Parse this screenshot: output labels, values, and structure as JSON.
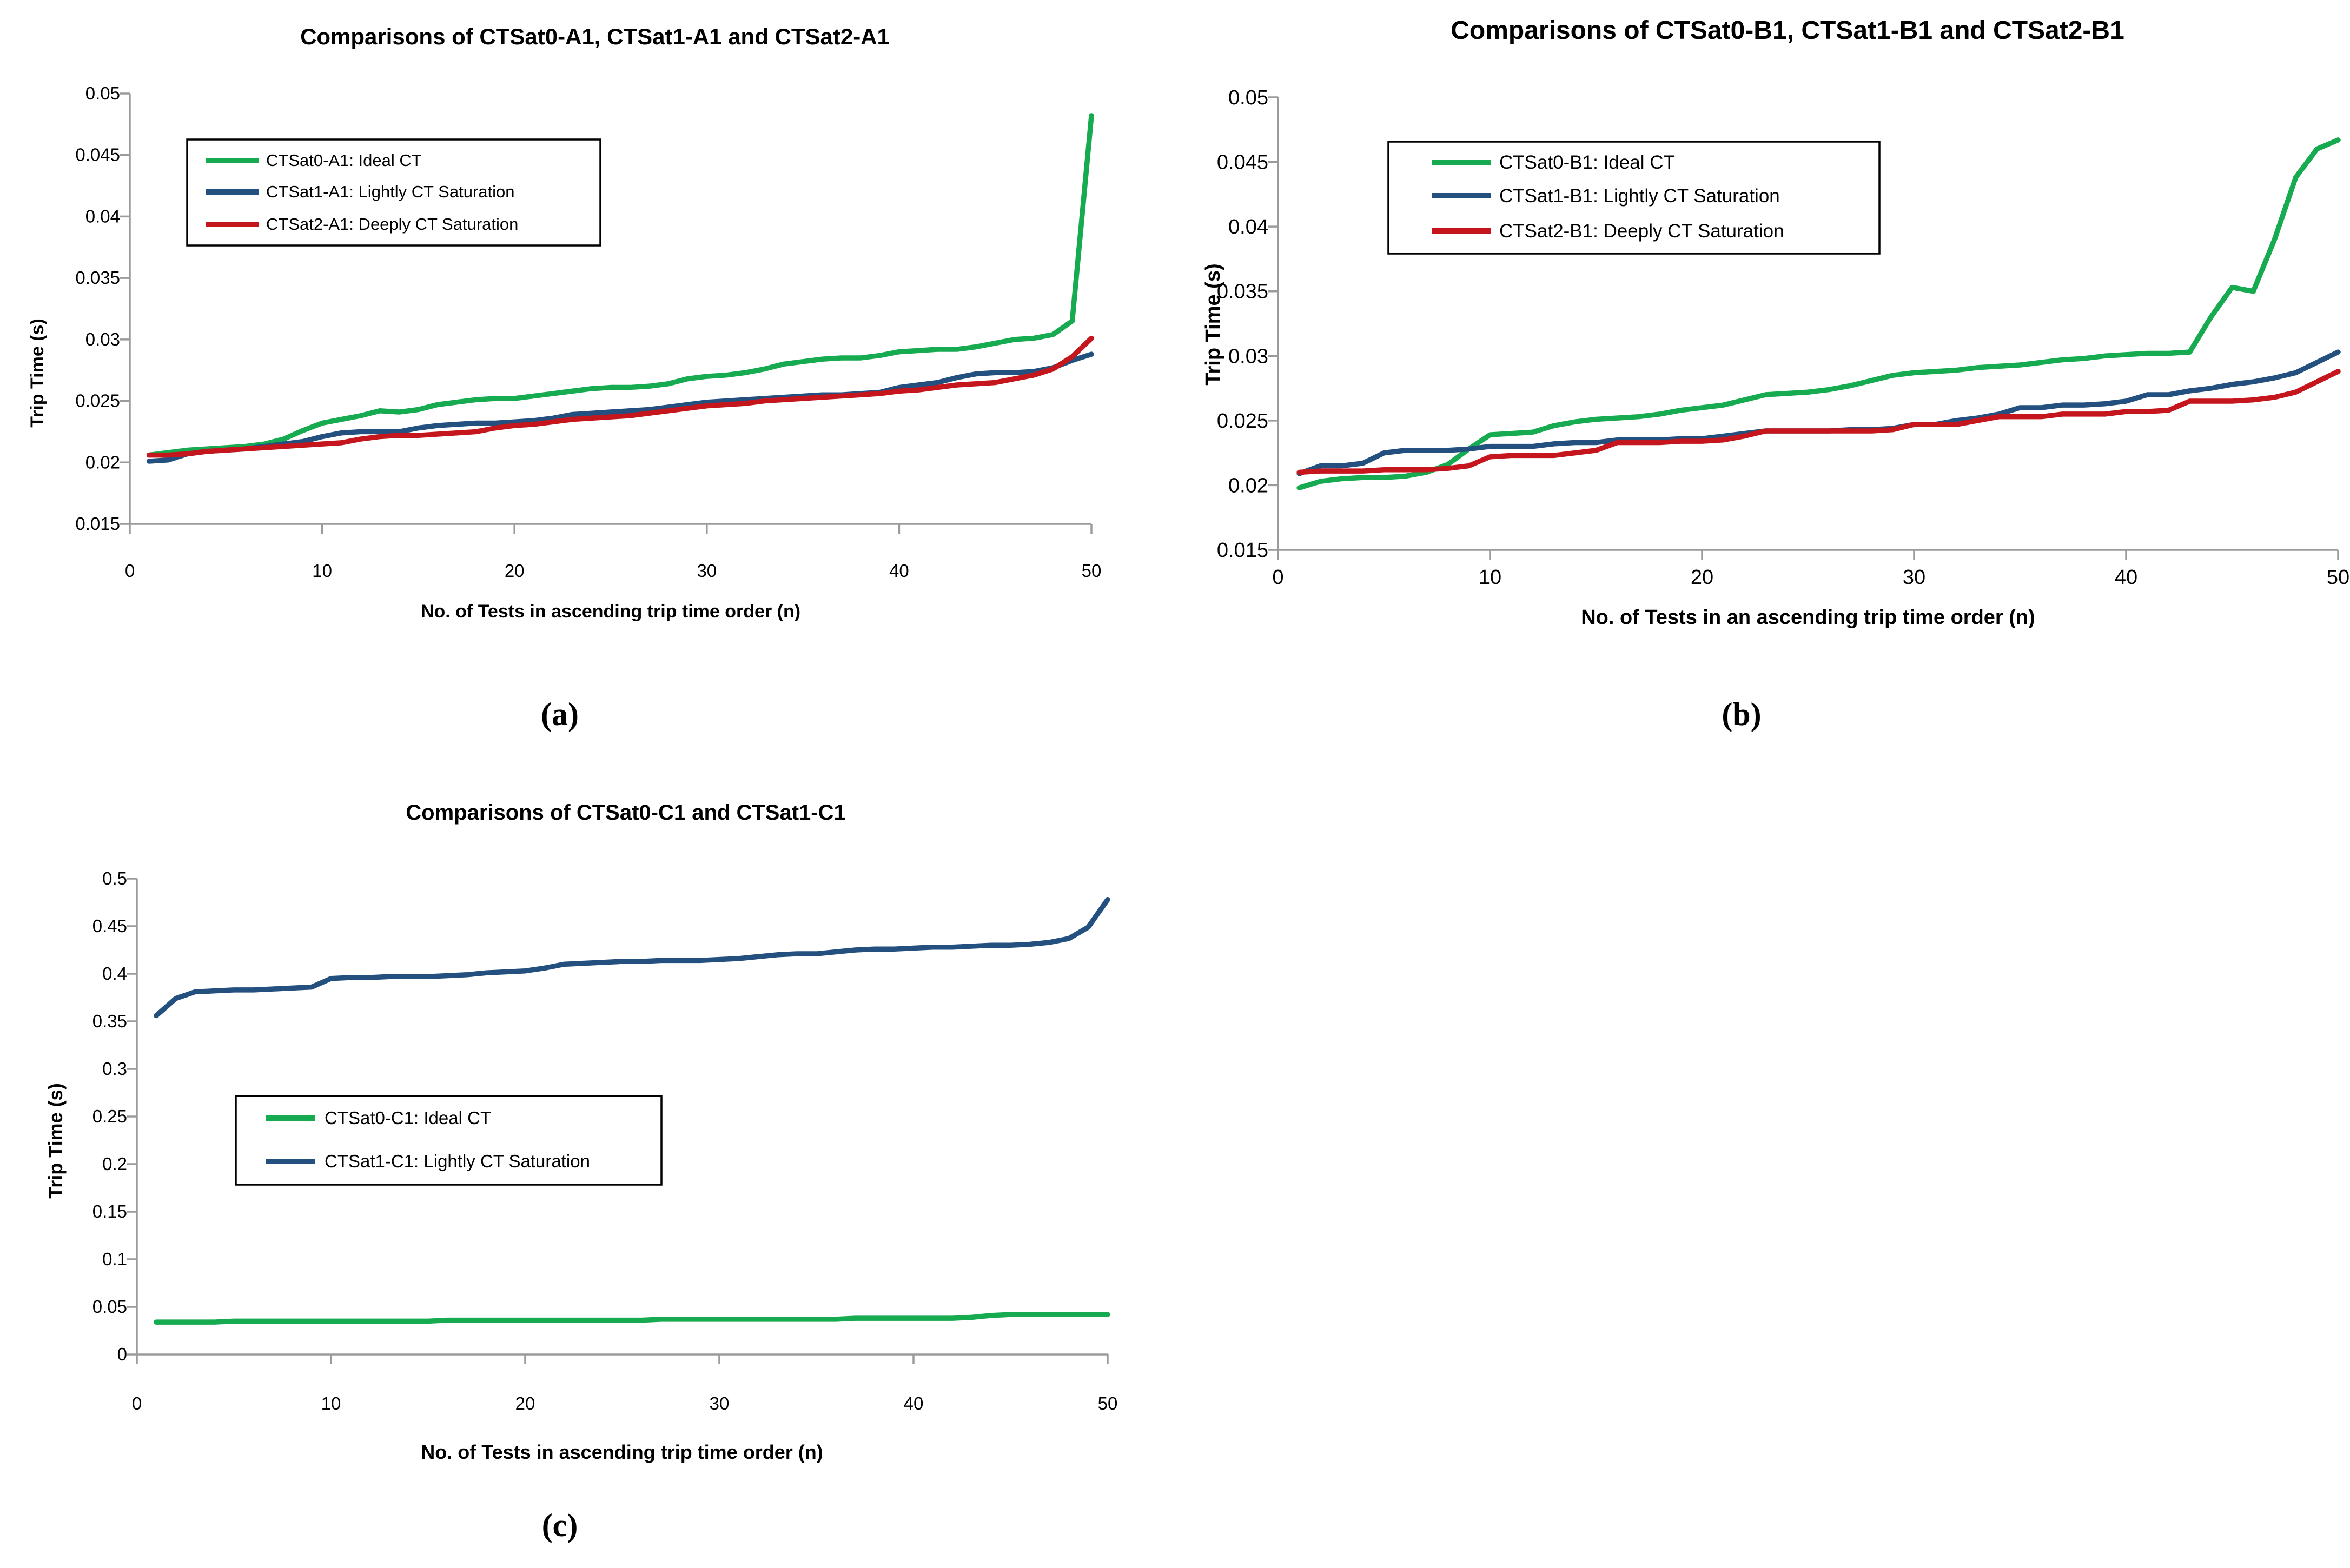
{
  "figure": {
    "background": "#ffffff",
    "axis_color": "#9B9B9B",
    "series_colors": {
      "ideal_green": "#17AB51",
      "light_blue": "#24507F",
      "deep_red": "#C5161D"
    }
  },
  "chart_data": [
    {
      "id": "a",
      "type": "line",
      "title": "Comparisons of CTSat0-A1, CTSat1-A1 and CTSat2-A1",
      "xlabel": "No. of Tests in ascending trip time order (n)",
      "ylabel": "Trip Time (s)",
      "caption": "(a)",
      "xlim": [
        0,
        50
      ],
      "ylim": [
        0.015,
        0.05
      ],
      "xticks": [
        0,
        10,
        20,
        30,
        40,
        50
      ],
      "yticks": [
        "0.015",
        "0.02",
        "0.025",
        "0.03",
        "0.035",
        "0.04",
        "0.045",
        "0.05"
      ],
      "grid": false,
      "legend_position": "upper-left",
      "x": [
        1,
        2,
        3,
        4,
        5,
        6,
        7,
        8,
        9,
        10,
        11,
        12,
        13,
        14,
        15,
        16,
        17,
        18,
        19,
        20,
        21,
        22,
        23,
        24,
        25,
        26,
        27,
        28,
        29,
        30,
        31,
        32,
        33,
        34,
        35,
        36,
        37,
        38,
        39,
        40,
        41,
        42,
        43,
        44,
        45,
        46,
        47,
        48,
        49,
        50
      ],
      "series": [
        {
          "name": "CTSat0-A1: Ideal CT",
          "color": "#17AB51",
          "values": [
            0.0206,
            0.0208,
            0.021,
            0.0211,
            0.0212,
            0.0213,
            0.0215,
            0.0219,
            0.0226,
            0.0232,
            0.0235,
            0.0238,
            0.0242,
            0.0241,
            0.0243,
            0.0247,
            0.0249,
            0.0251,
            0.0252,
            0.0252,
            0.0254,
            0.0256,
            0.0258,
            0.026,
            0.0261,
            0.0261,
            0.0262,
            0.0264,
            0.0268,
            0.027,
            0.0271,
            0.0273,
            0.0276,
            0.028,
            0.0282,
            0.0284,
            0.0285,
            0.0285,
            0.0287,
            0.029,
            0.0291,
            0.0292,
            0.0292,
            0.0294,
            0.0297,
            0.03,
            0.0301,
            0.0304,
            0.0315,
            0.0482
          ]
        },
        {
          "name": "CTSat1-A1: Lightly CT Saturation",
          "color": "#24507F",
          "values": [
            0.0201,
            0.0202,
            0.0207,
            0.0209,
            0.021,
            0.0211,
            0.0213,
            0.0215,
            0.0217,
            0.0221,
            0.0224,
            0.0225,
            0.0225,
            0.0225,
            0.0228,
            0.023,
            0.0231,
            0.0232,
            0.0232,
            0.0233,
            0.0234,
            0.0236,
            0.0239,
            0.024,
            0.0241,
            0.0242,
            0.0243,
            0.0245,
            0.0247,
            0.0249,
            0.025,
            0.0251,
            0.0252,
            0.0253,
            0.0254,
            0.0255,
            0.0255,
            0.0256,
            0.0257,
            0.0261,
            0.0263,
            0.0265,
            0.0269,
            0.0272,
            0.0273,
            0.0273,
            0.0274,
            0.0277,
            0.0283,
            0.0288
          ]
        },
        {
          "name": "CTSat2-A1: Deeply CT Saturation",
          "color": "#C5161D",
          "values": [
            0.0206,
            0.0206,
            0.0207,
            0.0209,
            0.021,
            0.0211,
            0.0212,
            0.0213,
            0.0214,
            0.0215,
            0.0216,
            0.0219,
            0.0221,
            0.0222,
            0.0222,
            0.0223,
            0.0224,
            0.0225,
            0.0228,
            0.023,
            0.0231,
            0.0233,
            0.0235,
            0.0236,
            0.0237,
            0.0238,
            0.024,
            0.0242,
            0.0244,
            0.0246,
            0.0247,
            0.0248,
            0.025,
            0.0251,
            0.0252,
            0.0253,
            0.0254,
            0.0255,
            0.0256,
            0.0258,
            0.0259,
            0.0261,
            0.0263,
            0.0264,
            0.0265,
            0.0268,
            0.0271,
            0.0276,
            0.0286,
            0.0301
          ]
        }
      ]
    },
    {
      "id": "b",
      "type": "line",
      "title": "Comparisons of CTSat0-B1, CTSat1-B1 and CTSat2-B1",
      "xlabel": "No. of Tests in an ascending trip time order (n)",
      "ylabel": "Trip Time (s)",
      "caption": "(b)",
      "xlim": [
        0,
        50
      ],
      "ylim": [
        0.015,
        0.05
      ],
      "xticks": [
        0,
        10,
        20,
        30,
        40,
        50
      ],
      "yticks": [
        "0.015",
        "0.02",
        "0.025",
        "0.03",
        "0.035",
        "0.04",
        "0.045",
        "0.05"
      ],
      "grid": false,
      "legend_position": "upper-left",
      "x": [
        1,
        2,
        3,
        4,
        5,
        6,
        7,
        8,
        9,
        10,
        11,
        12,
        13,
        14,
        15,
        16,
        17,
        18,
        19,
        20,
        21,
        22,
        23,
        24,
        25,
        26,
        27,
        28,
        29,
        30,
        31,
        32,
        33,
        34,
        35,
        36,
        37,
        38,
        39,
        40,
        41,
        42,
        43,
        44,
        45,
        46,
        47,
        48,
        49,
        50
      ],
      "series": [
        {
          "name": "CTSat0-B1: Ideal CT",
          "color": "#17AB51",
          "values": [
            0.0198,
            0.0203,
            0.0205,
            0.0206,
            0.0206,
            0.0207,
            0.021,
            0.0216,
            0.0228,
            0.0239,
            0.024,
            0.0241,
            0.0246,
            0.0249,
            0.0251,
            0.0252,
            0.0253,
            0.0255,
            0.0258,
            0.026,
            0.0262,
            0.0266,
            0.027,
            0.0271,
            0.0272,
            0.0274,
            0.0277,
            0.0281,
            0.0285,
            0.0287,
            0.0288,
            0.0289,
            0.0291,
            0.0292,
            0.0293,
            0.0295,
            0.0297,
            0.0298,
            0.03,
            0.0301,
            0.0302,
            0.0302,
            0.0303,
            0.033,
            0.0353,
            0.035,
            0.039,
            0.0438,
            0.046,
            0.0467
          ]
        },
        {
          "name": "CTSat1-B1: Lightly CT Saturation",
          "color": "#24507F",
          "values": [
            0.0209,
            0.0215,
            0.0215,
            0.0217,
            0.0225,
            0.0227,
            0.0227,
            0.0227,
            0.0228,
            0.023,
            0.023,
            0.023,
            0.0232,
            0.0233,
            0.0233,
            0.0235,
            0.0235,
            0.0235,
            0.0236,
            0.0236,
            0.0238,
            0.024,
            0.0242,
            0.0242,
            0.0242,
            0.0242,
            0.0243,
            0.0243,
            0.0244,
            0.0247,
            0.0247,
            0.025,
            0.0252,
            0.0255,
            0.026,
            0.026,
            0.0262,
            0.0262,
            0.0263,
            0.0265,
            0.027,
            0.027,
            0.0273,
            0.0275,
            0.0278,
            0.028,
            0.0283,
            0.0287,
            0.0295,
            0.0303
          ]
        },
        {
          "name": "CTSat2-B1: Deeply CT Saturation",
          "color": "#C5161D",
          "values": [
            0.021,
            0.0211,
            0.0211,
            0.0211,
            0.0212,
            0.0212,
            0.0212,
            0.0213,
            0.0215,
            0.0222,
            0.0223,
            0.0223,
            0.0223,
            0.0225,
            0.0227,
            0.0233,
            0.0233,
            0.0233,
            0.0234,
            0.0234,
            0.0235,
            0.0238,
            0.0242,
            0.0242,
            0.0242,
            0.0242,
            0.0242,
            0.0242,
            0.0243,
            0.0247,
            0.0247,
            0.0247,
            0.025,
            0.0253,
            0.0253,
            0.0253,
            0.0255,
            0.0255,
            0.0255,
            0.0257,
            0.0257,
            0.0258,
            0.0265,
            0.0265,
            0.0265,
            0.0266,
            0.0268,
            0.0272,
            0.028,
            0.0288
          ]
        }
      ]
    },
    {
      "id": "c",
      "type": "line",
      "title": "Comparisons of CTSat0-C1 and CTSat1-C1",
      "xlabel": "No. of Tests in ascending trip time order (n)",
      "ylabel": "Trip Time (s)",
      "caption": "(c)",
      "xlim": [
        0,
        50
      ],
      "ylim": [
        0,
        0.5
      ],
      "xticks": [
        0,
        10,
        20,
        30,
        40,
        50
      ],
      "yticks": [
        "0",
        "0.05",
        "0.1",
        "0.15",
        "0.2",
        "0.25",
        "0.3",
        "0.35",
        "0.4",
        "0.45",
        "0.5"
      ],
      "grid": false,
      "legend_position": "mid-left",
      "x": [
        1,
        2,
        3,
        4,
        5,
        6,
        7,
        8,
        9,
        10,
        11,
        12,
        13,
        14,
        15,
        16,
        17,
        18,
        19,
        20,
        21,
        22,
        23,
        24,
        25,
        26,
        27,
        28,
        29,
        30,
        31,
        32,
        33,
        34,
        35,
        36,
        37,
        38,
        39,
        40,
        41,
        42,
        43,
        44,
        45,
        46,
        47,
        48,
        49,
        50
      ],
      "series": [
        {
          "name": "CTSat0-C1: Ideal CT",
          "color": "#17AB51",
          "values": [
            0.034,
            0.034,
            0.034,
            0.034,
            0.035,
            0.035,
            0.035,
            0.035,
            0.035,
            0.035,
            0.035,
            0.035,
            0.035,
            0.035,
            0.035,
            0.036,
            0.036,
            0.036,
            0.036,
            0.036,
            0.036,
            0.036,
            0.036,
            0.036,
            0.036,
            0.036,
            0.037,
            0.037,
            0.037,
            0.037,
            0.037,
            0.037,
            0.037,
            0.037,
            0.037,
            0.037,
            0.038,
            0.038,
            0.038,
            0.038,
            0.038,
            0.038,
            0.039,
            0.041,
            0.042,
            0.042,
            0.042,
            0.042,
            0.042,
            0.042
          ]
        },
        {
          "name": "CTSat1-C1: Lightly CT Saturation",
          "color": "#24507F",
          "values": [
            0.356,
            0.374,
            0.381,
            0.382,
            0.383,
            0.383,
            0.384,
            0.385,
            0.386,
            0.395,
            0.396,
            0.396,
            0.397,
            0.397,
            0.397,
            0.398,
            0.399,
            0.401,
            0.402,
            0.403,
            0.406,
            0.41,
            0.411,
            0.412,
            0.413,
            0.413,
            0.414,
            0.414,
            0.414,
            0.415,
            0.416,
            0.418,
            0.42,
            0.421,
            0.421,
            0.423,
            0.425,
            0.426,
            0.426,
            0.427,
            0.428,
            0.428,
            0.429,
            0.43,
            0.43,
            0.431,
            0.433,
            0.437,
            0.449,
            0.478
          ]
        }
      ]
    }
  ]
}
